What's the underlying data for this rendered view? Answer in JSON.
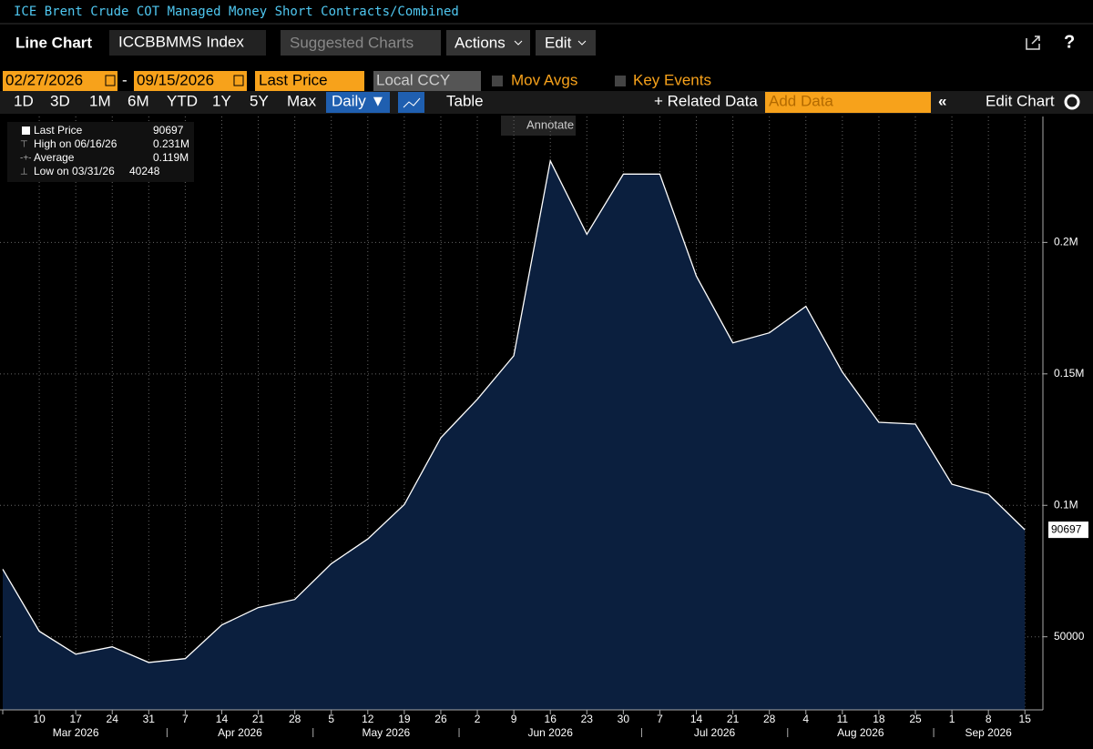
{
  "ui": {
    "window_title": "ICE Brent Crude COT Managed Money Short Contracts/Combined",
    "chart_kind": "Line Chart",
    "ticker": "ICCBBMMS Index",
    "suggested": "Suggested Charts",
    "actions": "Actions",
    "edit": "Edit",
    "start_date": "02/27/2026",
    "end_date": "09/15/2026",
    "field": "Last Price",
    "currency": "Local CCY",
    "mov_avgs": "Mov Avgs",
    "key_events": "Key Events",
    "ranges": [
      "1D",
      "3D",
      "1M",
      "6M",
      "YTD",
      "1Y",
      "5Y",
      "Max"
    ],
    "frequency": "Daily ▼",
    "table": "Table",
    "related": "+ Related Data",
    "add_data": "Add Data",
    "edit_chart": "Edit Chart",
    "annotate": "Annotate"
  },
  "chart_data": {
    "type": "line",
    "legend_box": [
      [
        "Last Price",
        "90697"
      ],
      [
        "High on 06/16/26",
        "0.231M"
      ],
      [
        "Average",
        "0.119M"
      ],
      [
        "Low on 03/31/26",
        "40248"
      ]
    ],
    "categories": [
      null,
      "10",
      "17",
      "24",
      "31",
      "7",
      "14",
      "21",
      "28",
      "5",
      "12",
      "19",
      "26",
      "2",
      "9",
      "16",
      "23",
      "30",
      "7",
      "14",
      "21",
      "28",
      "4",
      "11",
      "18",
      "25",
      "1",
      "8",
      "15"
    ],
    "months": [
      "Mar 2026",
      "Apr 2026",
      "May 2026",
      "Jun 2026",
      "Jul 2026",
      "Aug 2026",
      "Sep 2026"
    ],
    "values": [
      75700,
      52100,
      43400,
      46200,
      40248,
      41700,
      54500,
      61100,
      64200,
      77800,
      87200,
      100300,
      125700,
      140300,
      156900,
      231000,
      203100,
      226000,
      226000,
      187200,
      161800,
      165600,
      175700,
      150700,
      131600,
      130900,
      108000,
      104200,
      90697
    ],
    "color": "#ffffff",
    "fill": "#0b1f3e",
    "ylim": [
      22200,
      247900
    ],
    "yticks": [
      50000,
      {
        "value": 100000,
        "label": "0.1M"
      },
      {
        "value": 150000,
        "label": "0.15M"
      },
      {
        "value": 200000,
        "label": "0.2M"
      }
    ],
    "grid": true
  }
}
